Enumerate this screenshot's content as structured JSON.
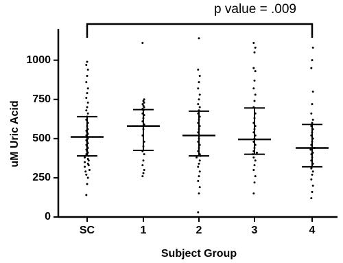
{
  "chart_data": {
    "type": "dot-strip",
    "title": "p value = .009",
    "x_label": "Subject Group",
    "y_label": "uM Uric Acid",
    "categories": [
      "SC",
      "1",
      "2",
      "3",
      "4"
    ],
    "points": [
      [
        140,
        210,
        250,
        270,
        290,
        300,
        320,
        330,
        340,
        350,
        360,
        370,
        380,
        390,
        400,
        410,
        420,
        430,
        440,
        450,
        460,
        470,
        480,
        490,
        500,
        510,
        520,
        530,
        540,
        550,
        560,
        580,
        600,
        620,
        640,
        660,
        680,
        700,
        730,
        760,
        790,
        820,
        860,
        900,
        940,
        970,
        990
      ],
      [
        260,
        280,
        300,
        330,
        360,
        400,
        420,
        450,
        480,
        520,
        560,
        590,
        610,
        630,
        650,
        660,
        680,
        690,
        700,
        710,
        720,
        730,
        740,
        750,
        1110
      ],
      [
        30,
        150,
        190,
        230,
        260,
        290,
        320,
        340,
        360,
        380,
        390,
        400,
        420,
        440,
        460,
        480,
        500,
        520,
        540,
        560,
        580,
        600,
        620,
        640,
        660,
        680,
        700,
        720,
        750,
        780,
        820,
        860,
        900,
        940,
        1140
      ],
      [
        150,
        220,
        260,
        300,
        330,
        360,
        380,
        400,
        410,
        420,
        440,
        460,
        480,
        500,
        520,
        540,
        560,
        580,
        600,
        630,
        660,
        700,
        740,
        780,
        820,
        870,
        930,
        950,
        1050,
        1080,
        1110
      ],
      [
        120,
        160,
        200,
        240,
        270,
        290,
        310,
        320,
        340,
        360,
        380,
        400,
        410,
        430,
        440,
        460,
        480,
        500,
        520,
        540,
        560,
        580,
        600,
        620,
        660,
        720,
        800,
        950,
        1000,
        1080
      ]
    ],
    "mean": [
      510,
      580,
      520,
      495,
      440
    ],
    "error_high": [
      640,
      685,
      675,
      695,
      590
    ],
    "error_low": [
      390,
      425,
      390,
      400,
      320
    ],
    "color": "#000000",
    "ylim": [
      0,
      1200
    ],
    "yticks": [
      0,
      250,
      500,
      750,
      1000
    ]
  }
}
